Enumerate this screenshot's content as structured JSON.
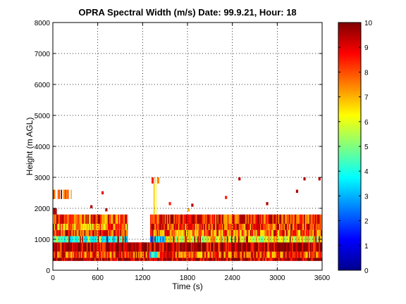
{
  "chart_data": {
    "type": "heatmap",
    "title": "OPRA Spectral Width (m/s)  Date: 99.9.21, Hour: 18",
    "xlabel": "Time (s)",
    "ylabel": "Height (m AGL)",
    "xlim": [
      0,
      3600
    ],
    "ylim": [
      0,
      8000
    ],
    "xticks": [
      0,
      600,
      1200,
      1800,
      2400,
      3000,
      3600
    ],
    "yticks": [
      0,
      1000,
      2000,
      3000,
      4000,
      5000,
      6000,
      7000,
      8000
    ],
    "grid": true,
    "colorbar": {
      "range": [
        0,
        10
      ],
      "ticks": [
        0,
        1,
        2,
        3,
        4,
        5,
        6,
        7,
        8,
        9,
        10
      ],
      "colormap": "jet"
    },
    "bands": [
      {
        "t": [
          0,
          3600
        ],
        "h": [
          300,
          400
        ],
        "value": 9.5
      },
      {
        "t": [
          0,
          1300
        ],
        "h": [
          400,
          600
        ],
        "value": 8
      },
      {
        "t": [
          1300,
          1400
        ],
        "h": [
          400,
          600
        ],
        "value": 3.2
      },
      {
        "t": [
          1400,
          3600
        ],
        "h": [
          400,
          600
        ],
        "value": 8
      },
      {
        "t": [
          0,
          3600
        ],
        "h": [
          600,
          900
        ],
        "value": 9.5
      },
      {
        "t": [
          0,
          1000
        ],
        "h": [
          900,
          1100
        ],
        "value": 4.2
      },
      {
        "t": [
          1300,
          1500
        ],
        "h": [
          900,
          1100
        ],
        "value": 3.0
      },
      {
        "t": [
          1500,
          3600
        ],
        "h": [
          900,
          1100
        ],
        "value": 6.2
      },
      {
        "t": [
          0,
          1000
        ],
        "h": [
          1100,
          1300
        ],
        "value": 8.5
      },
      {
        "t": [
          1300,
          3600
        ],
        "h": [
          1100,
          1300
        ],
        "value": 7.5
      },
      {
        "t": [
          0,
          1000
        ],
        "h": [
          1300,
          1500
        ],
        "value": 7.2
      },
      {
        "t": [
          1300,
          3600
        ],
        "h": [
          1300,
          1500
        ],
        "value": 8.2
      },
      {
        "t": [
          0,
          1000
        ],
        "h": [
          1500,
          1800
        ],
        "value": 8.0
      },
      {
        "t": [
          1300,
          3600
        ],
        "h": [
          1500,
          1800
        ],
        "value": 8.5
      },
      {
        "t": [
          0,
          50
        ],
        "h": [
          1800,
          2000
        ],
        "value": 9.5
      },
      {
        "t": [
          1300,
          1380
        ],
        "h": [
          1800,
          2800
        ],
        "value": 7.5
      },
      {
        "t": [
          0,
          250
        ],
        "h": [
          2300,
          2600
        ],
        "value": 8.5
      },
      {
        "t": [
          1320,
          1420
        ],
        "h": [
          2800,
          3000
        ],
        "value": 7.5
      }
    ],
    "sparse_cells": [
      [
        500,
        2000,
        9.5
      ],
      [
        700,
        1900,
        9.5
      ],
      [
        1550,
        2100,
        8.5
      ],
      [
        1850,
        2050,
        9.5
      ],
      [
        2300,
        2300,
        8.5
      ],
      [
        2480,
        2900,
        9.5
      ],
      [
        2850,
        2100,
        9.5
      ],
      [
        3250,
        2500,
        9.5
      ],
      [
        3350,
        2900,
        9.5
      ],
      [
        3550,
        2900,
        9.5
      ],
      [
        650,
        2450,
        9.0
      ],
      [
        1800,
        1900,
        7.0
      ]
    ]
  }
}
